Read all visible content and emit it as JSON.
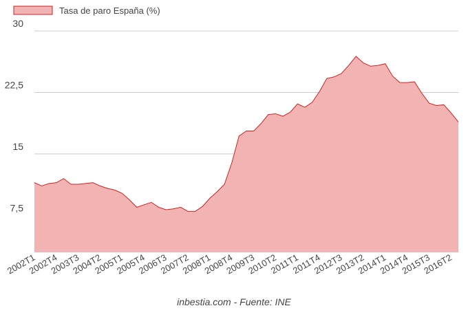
{
  "chart_data": {
    "type": "area",
    "series": [
      {
        "name": "Tasa de paro España (%)",
        "color": "#cc2222",
        "fill": "#f2b3b3",
        "values": [
          11.5,
          11.1,
          11.4,
          11.5,
          12.0,
          11.3,
          11.3,
          11.4,
          11.5,
          11.1,
          10.8,
          10.6,
          10.2,
          9.4,
          8.5,
          8.8,
          9.1,
          8.5,
          8.2,
          8.3,
          8.5,
          8.0,
          8.0,
          8.6,
          9.6,
          10.4,
          11.3,
          13.9,
          17.2,
          17.8,
          17.8,
          18.7,
          19.8,
          19.9,
          19.6,
          20.1,
          21.1,
          20.7,
          21.3,
          22.6,
          24.2,
          24.4,
          24.8,
          25.8,
          26.9,
          26.1,
          25.7,
          25.8,
          26.0,
          24.5,
          23.7,
          23.7,
          23.8,
          22.4,
          21.2,
          20.9,
          21.0,
          20.0,
          18.9
        ]
      }
    ],
    "categories": [
      "2002T1",
      null,
      null,
      "2002T4",
      null,
      null,
      "2003T3",
      null,
      null,
      "2004T2",
      null,
      null,
      "2005T1",
      null,
      null,
      "2005T4",
      null,
      null,
      "2006T3",
      null,
      null,
      "2007T2",
      null,
      null,
      "2008T1",
      null,
      null,
      "2008T4",
      null,
      null,
      "2009T3",
      null,
      null,
      "2010T2",
      null,
      null,
      "2011T1",
      null,
      null,
      "2011T4",
      null,
      null,
      "2012T3",
      null,
      null,
      "2013T2",
      null,
      null,
      "2014T1",
      null,
      null,
      "2014T4",
      null,
      null,
      "2015T3",
      null,
      null,
      "2016T2",
      null
    ],
    "ylim": [
      3,
      30
    ],
    "yticks": [
      {
        "value": 7.5,
        "label": "7,5"
      },
      15,
      {
        "value": 22.5,
        "label": "22,5"
      },
      30
    ],
    "grid": true,
    "legend": "top-left",
    "footer": "inbestia.com - Fuente: INE"
  }
}
